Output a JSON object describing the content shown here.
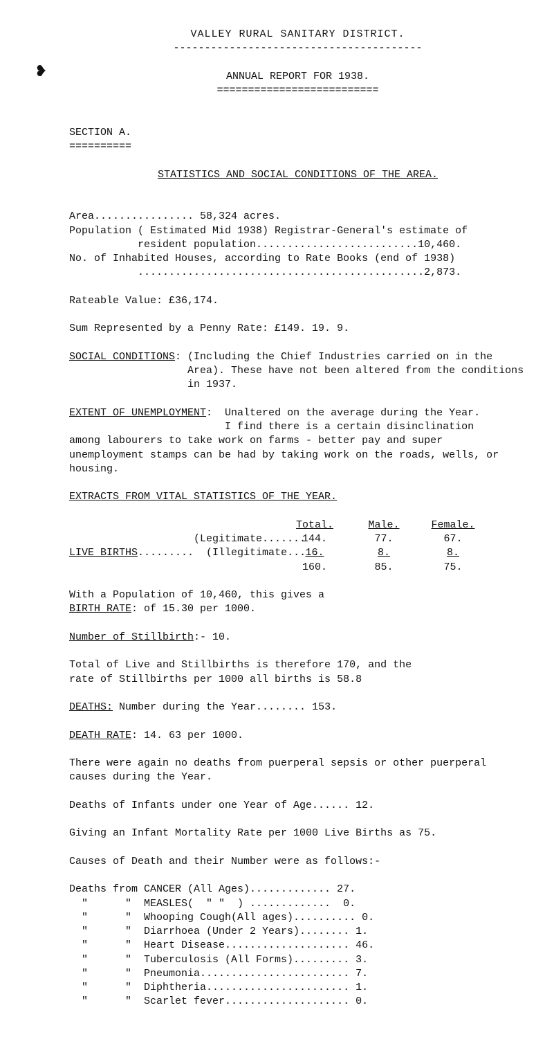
{
  "doc_title_1": "VALLEY  RURAL  SANITARY  DISTRICT.",
  "dashline_1": "----------------------------------------",
  "doc_title_2": "ANNUAL REPORT FOR 1938.",
  "dbl_line": "==========================",
  "section_a": "SECTION A.",
  "sec_a_under": "==========",
  "stats_heading": "STATISTICS AND SOCIAL CONDITIONS OF THE AREA.",
  "area_line": "Area................ 58,324 acres.",
  "pop_line1": "Population ( Estimated Mid 1938) Registrar-General's estimate of",
  "pop_line2": "           resident population..........................10,460.",
  "pop_line3": "No. of Inhabited Houses, according to Rate Books (end of 1938)",
  "pop_line4": "           ..............................................2,873.",
  "rateable_line": "Rateable Value:  £36,174.",
  "sum_line": "Sum Represented by a Penny Rate:  £149. 19. 9.",
  "soc_head": "SOCIAL CONDITIONS",
  "soc_text1": ": (Including the Chief Industries carried on in the",
  "soc_text2": "                   Area). These have not been altered from the conditions",
  "soc_text3": "                   in 1937.",
  "unemp_head": "EXTENT OF UNEMPLOYMENT",
  "unemp_text1": ":  Unaltered on the average during the Year.",
  "unemp_text2": "                         I find there is a certain disinclination",
  "unemp_text3": "among labourers to take work on farms - better pay and super",
  "unemp_text4": "unemployment stamps can be had by taking work on the roads, wells, or",
  "unemp_text5": "housing.",
  "extracts_head": "EXTRACTS FROM VITAL STATISTICS OF THE YEAR.",
  "col_total": "Total.",
  "col_male": "Male.",
  "col_female": "Female.",
  "legit_lab": "                    (Legitimate.......",
  "live_head": "LIVE BIRTHS",
  "illegit_tail": ".........  (Illegitimate.....",
  "legit_total": "144.",
  "legit_male": "77.",
  "legit_female": "67.",
  "illegit_total": "16.",
  "illegit_male": "8.",
  "illegit_female": "8.",
  "sum_total": "160.",
  "sum_male": "85.",
  "sum_female": "75.",
  "with_pop1": "With a Population of 10,460, this gives a",
  "birthrate_head": "BIRTH RATE",
  "birthrate_tail": ": of 15.30 per 1000.",
  "nstill_head": "Number of Stillbirth",
  "nstill_tail": ":-  10.",
  "tot_live1": "Total of Live and Stillbirths is therefore 170, and the",
  "tot_live2": "rate of Stillbirths per 1000 all births is 58.8",
  "deaths_head": "DEATHS:",
  "deaths_tail": "  Number during the Year........ 153.",
  "deathrate_head": "DEATH RATE",
  "deathrate_tail": ":   14. 63 per 1000.",
  "puerperal1": "There were again no deaths from puerperal sepsis or other puerperal",
  "puerperal2": "causes during the Year.",
  "infants_line": "Deaths of Infants under one Year of Age...... 12.",
  "infmort_line": "Giving an Infant Mortality Rate per 1000 Live Births as 75.",
  "causes_intro": "Causes of Death and their Number were as follows:-",
  "cause_cancer": "Deaths from CANCER (All Ages)............. 27.",
  "cause_measles": "  \"      \"  MEASLES(  \" \"  ) .............  0.",
  "cause_whoop": "  \"      \"  Whooping Cough(All ages).......... 0.",
  "cause_diarr": "  \"      \"  Diarrhoea (Under 2 Years)........ 1.",
  "cause_heart": "  \"      \"  Heart Disease.................... 46.",
  "cause_tb": "  \"      \"  Tuberculosis (All Forms)......... 3.",
  "cause_pneu": "  \"      \"  Pneumonia........................ 7.",
  "cause_diph": "  \"      \"  Diphtheria....................... 1.",
  "cause_scarlet": "  \"      \"  Scarlet fever.................... 0."
}
